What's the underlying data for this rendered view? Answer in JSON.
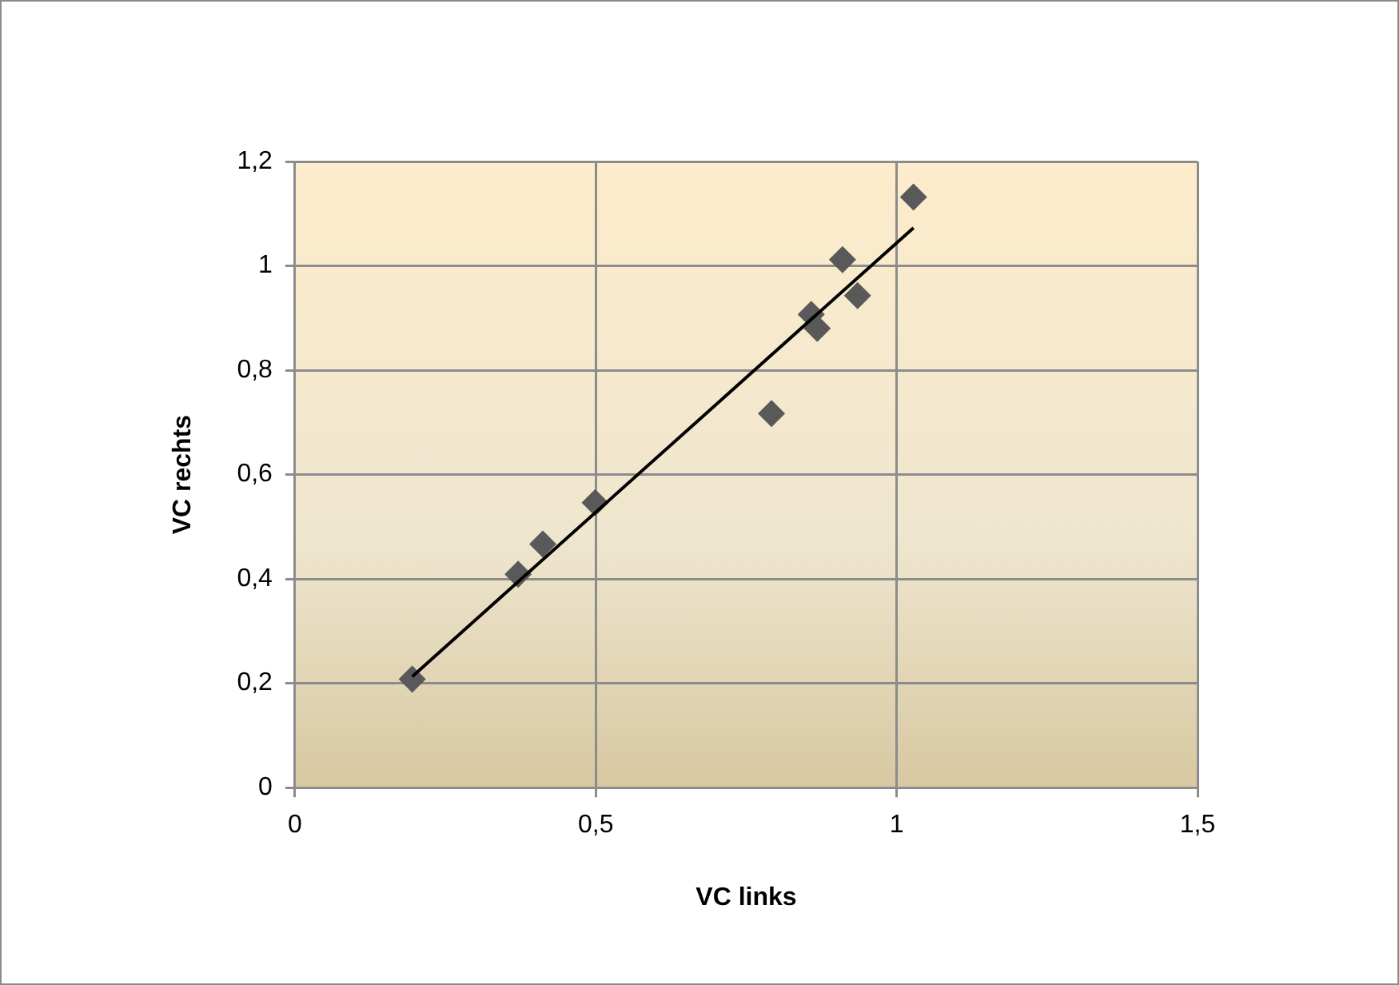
{
  "chart_data": {
    "type": "scatter",
    "xlabel": "VC links",
    "ylabel": "VC rechts",
    "xlim": [
      0,
      1.5
    ],
    "xticks": [
      0,
      {
        "value": 0.5,
        "label": "0,5"
      },
      1,
      {
        "value": 1.5,
        "label": "1,5"
      }
    ],
    "ylim": [
      0,
      1.2
    ],
    "yticks": [
      0,
      {
        "value": 0.2,
        "label": "0,2"
      },
      {
        "value": 0.4,
        "label": "0,4"
      },
      {
        "value": 0.6,
        "label": "0,6"
      },
      {
        "value": 0.8,
        "label": "0,8"
      },
      1,
      {
        "value": 1.2,
        "label": "1,2"
      }
    ],
    "grid": true,
    "marker": "diamond",
    "series": [
      {
        "type": "scatter",
        "color": "#595959",
        "x": [
          0.195,
          0.371,
          0.412,
          0.499,
          0.792,
          0.858,
          0.868,
          0.91,
          0.935,
          1.028
        ],
        "values": [
          0.208,
          0.409,
          0.467,
          0.546,
          0.717,
          0.907,
          0.88,
          1.012,
          0.943,
          1.132
        ]
      },
      {
        "type": "line",
        "color": "#000000",
        "marker": "none",
        "x": [
          0.195,
          1.028
        ],
        "values": [
          0.213,
          1.073
        ]
      }
    ]
  }
}
